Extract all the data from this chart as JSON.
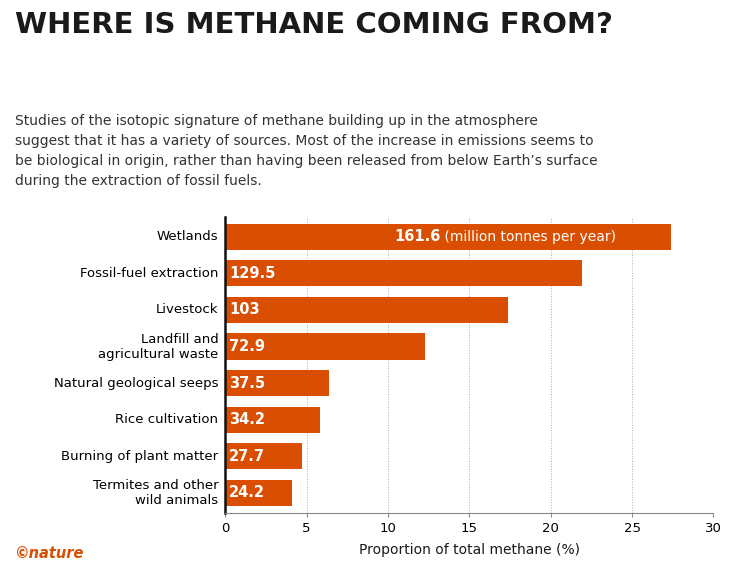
{
  "title": "WHERE IS METHANE COMING FROM?",
  "subtitle": "Studies of the isotopic signature of methane building up in the atmosphere\nsuggest that it has a variety of sources. Most of the increase in emissions seems to\nbe biological in origin, rather than having been released from below Earth’s surface\nduring the extraction of fossil fuels.",
  "categories": [
    "Wetlands",
    "Fossil-fuel extraction",
    "Livestock",
    "Landfill and\nagricultural waste",
    "Natural geological seeps",
    "Rice cultivation",
    "Burning of plant matter",
    "Termites and other\nwild animals"
  ],
  "values": [
    27.4,
    21.9,
    17.4,
    12.3,
    6.35,
    5.79,
    4.69,
    4.1
  ],
  "labels": [
    "161.6",
    "129.5",
    "103",
    "72.9",
    "37.5",
    "34.2",
    "27.7",
    "24.2"
  ],
  "bar_color": "#d94e00",
  "background_color": "#ffffff",
  "xlabel": "Proportion of total methane (%)",
  "xlim": [
    0,
    30
  ],
  "xticks": [
    0,
    5,
    10,
    15,
    20,
    25,
    30
  ],
  "grid_color": "#aaaaaa",
  "text_color": "#1a1a1a",
  "bar_label_color": "#ffffff",
  "bar_label_fontsize": 10.5,
  "axis_label_fontsize": 10,
  "title_fontsize": 21,
  "subtitle_fontsize": 10,
  "nature_color": "#d94e00",
  "wetlands_extra_label": " (million tonnes per year)"
}
